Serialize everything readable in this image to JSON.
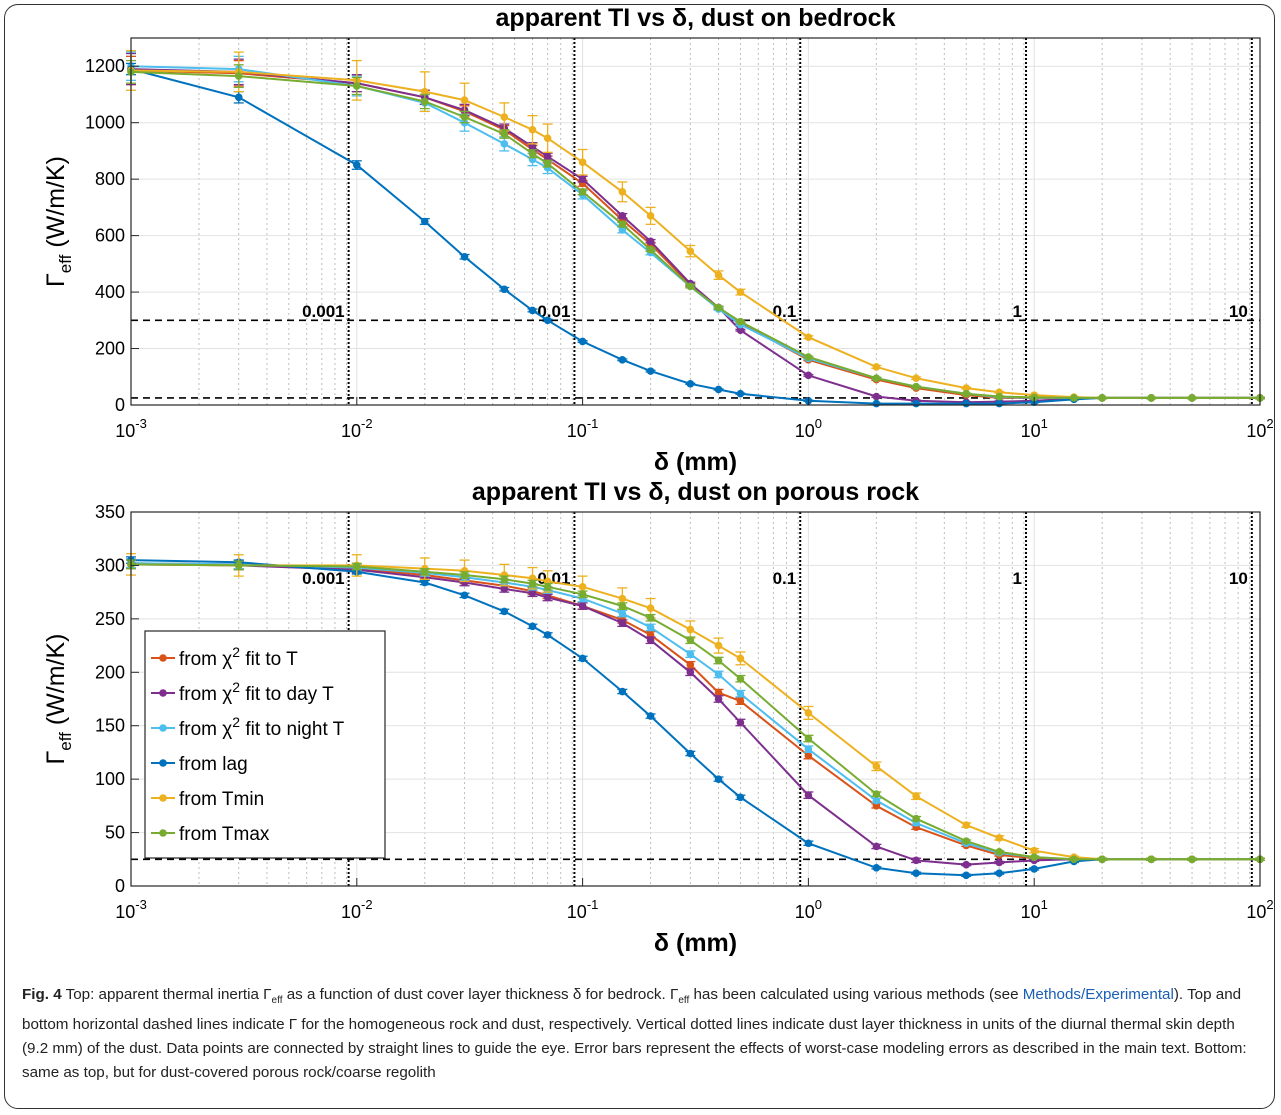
{
  "chart_data": [
    {
      "type": "line",
      "title": "apparent TI vs δ, dust on bedrock",
      "xlabel": "δ (mm)",
      "ylabel": "Γ_eff (W/m/K)",
      "xscale": "log",
      "xlim": [
        0.001,
        100
      ],
      "ylim": [
        0,
        1300
      ],
      "xticks": [
        0.001,
        0.01,
        0.1,
        1,
        10,
        100
      ],
      "yticks": [
        0,
        200,
        400,
        600,
        800,
        1000,
        1200
      ],
      "grid": "minor x dotted, major y",
      "legend": "none",
      "hlines": [
        300,
        25
      ],
      "skin_depth_lines": [
        {
          "x": 0.0092,
          "label": "0.001"
        },
        {
          "x": 0.092,
          "label": "0.01"
        },
        {
          "x": 0.92,
          "label": "0.1"
        },
        {
          "x": 9.2,
          "label": "1"
        },
        {
          "x": 92,
          "label": "10"
        }
      ],
      "x": [
        0.001,
        0.003,
        0.01,
        0.02,
        0.03,
        0.045,
        0.06,
        0.07,
        0.1,
        0.15,
        0.2,
        0.3,
        0.4,
        0.5,
        1,
        2,
        3,
        5,
        7,
        10,
        15,
        20,
        33,
        50,
        100
      ],
      "series": [
        {
          "name": "from χ² fit to T",
          "color": "#D95319",
          "values": [
            1185,
            1175,
            1140,
            1090,
            1040,
            975,
            905,
            870,
            785,
            655,
            570,
            425,
            345,
            290,
            160,
            90,
            60,
            35,
            25,
            25,
            25,
            25,
            25,
            25,
            25
          ],
          "err": [
            50,
            45,
            30,
            25,
            20,
            15,
            14,
            12,
            10,
            8,
            6,
            5,
            4,
            3,
            3,
            3,
            2,
            2,
            2,
            2,
            2,
            2,
            2,
            2,
            2
          ]
        },
        {
          "name": "from χ² fit to day T",
          "color": "#7E2F8E",
          "values": [
            1190,
            1180,
            1140,
            1090,
            1045,
            980,
            915,
            880,
            800,
            670,
            580,
            430,
            345,
            265,
            105,
            30,
            15,
            10,
            12,
            15,
            22,
            25,
            25,
            25,
            25
          ],
          "err": [
            55,
            45,
            30,
            25,
            20,
            15,
            14,
            12,
            10,
            8,
            6,
            5,
            4,
            3,
            3,
            3,
            2,
            2,
            2,
            2,
            2,
            2,
            2,
            2,
            2
          ]
        },
        {
          "name": "from χ² fit to night T",
          "color": "#4DBEEE",
          "values": [
            1200,
            1190,
            1130,
            1070,
            1000,
            925,
            870,
            840,
            745,
            620,
            540,
            420,
            340,
            285,
            165,
            95,
            65,
            40,
            28,
            26,
            25,
            25,
            25,
            25,
            25
          ],
          "err": [
            50,
            45,
            35,
            30,
            30,
            25,
            22,
            20,
            15,
            10,
            8,
            5,
            4,
            3,
            3,
            3,
            2,
            2,
            2,
            2,
            2,
            2,
            2,
            2,
            2
          ]
        },
        {
          "name": "from lag",
          "color": "#0072BD",
          "values": [
            1190,
            1090,
            850,
            650,
            525,
            410,
            335,
            300,
            225,
            160,
            120,
            75,
            55,
            40,
            15,
            5,
            5,
            5,
            5,
            10,
            20,
            25,
            25,
            25,
            25
          ],
          "err": [
            20,
            20,
            15,
            10,
            8,
            6,
            5,
            4,
            3,
            3,
            3,
            2,
            2,
            2,
            2,
            2,
            2,
            2,
            2,
            2,
            2,
            2,
            2,
            2,
            2
          ]
        },
        {
          "name": "from Tmin",
          "color": "#EDB120",
          "values": [
            1185,
            1180,
            1150,
            1110,
            1080,
            1020,
            975,
            945,
            860,
            755,
            670,
            545,
            460,
            400,
            240,
            135,
            95,
            60,
            45,
            35,
            28,
            25,
            25,
            25,
            25
          ],
          "err": [
            70,
            70,
            70,
            70,
            60,
            50,
            50,
            50,
            45,
            35,
            30,
            20,
            15,
            10,
            5,
            5,
            4,
            3,
            2,
            2,
            2,
            2,
            2,
            2,
            2
          ]
        },
        {
          "name": "from Tmax",
          "color": "#77AC30",
          "values": [
            1180,
            1165,
            1130,
            1075,
            1020,
            960,
            890,
            855,
            755,
            640,
            550,
            420,
            345,
            295,
            170,
            95,
            65,
            40,
            30,
            27,
            25,
            25,
            25,
            25,
            25
          ],
          "err": [
            40,
            40,
            30,
            25,
            20,
            15,
            14,
            12,
            10,
            8,
            6,
            5,
            4,
            3,
            3,
            3,
            2,
            2,
            2,
            2,
            2,
            2,
            2,
            2,
            2
          ]
        }
      ]
    },
    {
      "type": "line",
      "title": "apparent TI vs δ, dust on porous rock",
      "xlabel": "δ (mm)",
      "ylabel": "Γ_eff (W/m/K)",
      "xscale": "log",
      "xlim": [
        0.001,
        100
      ],
      "ylim": [
        0,
        350
      ],
      "xticks": [
        0.001,
        0.01,
        0.1,
        1,
        10,
        100
      ],
      "yticks": [
        0,
        50,
        100,
        150,
        200,
        250,
        300,
        350
      ],
      "grid": "minor x dotted, major y",
      "legend": "left",
      "hlines": [
        25
      ],
      "skin_depth_lines": [
        {
          "x": 0.0092,
          "label": "0.001"
        },
        {
          "x": 0.092,
          "label": "0.01"
        },
        {
          "x": 0.92,
          "label": "0.1"
        },
        {
          "x": 9.2,
          "label": "1"
        },
        {
          "x": 92,
          "label": "10"
        }
      ],
      "x": [
        0.001,
        0.003,
        0.01,
        0.02,
        0.03,
        0.045,
        0.06,
        0.07,
        0.1,
        0.15,
        0.2,
        0.3,
        0.4,
        0.5,
        1,
        2,
        3,
        5,
        7,
        10,
        15,
        20,
        33,
        50,
        100
      ],
      "series": [
        {
          "name": "from χ² fit to T",
          "color": "#D95319",
          "values": [
            302,
            301,
            297,
            291,
            286,
            281,
            276,
            272,
            262,
            249,
            235,
            207,
            181,
            173,
            122,
            75,
            55,
            38,
            29,
            26,
            25,
            25,
            25,
            25,
            25
          ],
          "err": [
            4,
            4,
            3,
            3,
            3,
            3,
            3,
            3,
            3,
            3,
            3,
            3,
            3,
            3,
            3,
            2,
            2,
            1,
            1,
            1,
            1,
            1,
            1,
            1,
            1
          ]
        },
        {
          "name": "from χ² fit to day T",
          "color": "#7E2F8E",
          "values": [
            301,
            300,
            296,
            289,
            284,
            278,
            274,
            270,
            262,
            246,
            230,
            200,
            175,
            153,
            85,
            37,
            24,
            20,
            22,
            24,
            25,
            25,
            25,
            25,
            25
          ],
          "err": [
            4,
            4,
            3,
            3,
            3,
            3,
            3,
            3,
            3,
            3,
            3,
            3,
            3,
            3,
            3,
            2,
            2,
            1,
            1,
            1,
            1,
            1,
            1,
            1,
            1
          ]
        },
        {
          "name": "from χ² fit to night T",
          "color": "#4DBEEE",
          "values": [
            302,
            301,
            298,
            293,
            289,
            284,
            280,
            277,
            269,
            255,
            242,
            217,
            198,
            180,
            128,
            80,
            59,
            40,
            31,
            27,
            25,
            25,
            25,
            25,
            25
          ],
          "err": [
            4,
            4,
            3,
            3,
            3,
            3,
            3,
            3,
            3,
            3,
            3,
            3,
            3,
            3,
            3,
            2,
            2,
            1,
            1,
            1,
            1,
            1,
            1,
            1,
            1
          ]
        },
        {
          "name": "from lag",
          "color": "#0072BD",
          "values": [
            305,
            303,
            294,
            284,
            272,
            257,
            243,
            235,
            213,
            182,
            159,
            124,
            100,
            83,
            40,
            17,
            12,
            10,
            12,
            16,
            23,
            25,
            25,
            25,
            25
          ],
          "err": [
            3,
            2,
            2,
            2,
            2,
            2,
            2,
            2,
            2,
            2,
            2,
            2,
            2,
            2,
            2,
            1,
            1,
            1,
            1,
            1,
            1,
            1,
            1,
            1,
            1
          ]
        },
        {
          "name": "from Tmin",
          "color": "#EDB120",
          "values": [
            301,
            300,
            300,
            297,
            295,
            291,
            288,
            285,
            280,
            269,
            260,
            240,
            225,
            213,
            162,
            112,
            84,
            57,
            45,
            33,
            27,
            25,
            25,
            25,
            25
          ],
          "err": [
            10,
            10,
            10,
            10,
            10,
            10,
            10,
            10,
            10,
            10,
            9,
            8,
            7,
            6,
            6,
            4,
            3,
            2,
            2,
            2,
            1,
            1,
            1,
            1,
            1
          ]
        },
        {
          "name": "from Tmax",
          "color": "#77AC30",
          "values": [
            301,
            300,
            299,
            294,
            291,
            287,
            283,
            280,
            273,
            262,
            251,
            230,
            211,
            194,
            138,
            86,
            63,
            42,
            32,
            27,
            25,
            25,
            25,
            25,
            25
          ],
          "err": [
            4,
            4,
            3,
            3,
            3,
            3,
            3,
            3,
            3,
            3,
            3,
            3,
            3,
            3,
            3,
            2,
            2,
            1,
            1,
            1,
            1,
            1,
            1,
            1,
            1
          ]
        }
      ]
    }
  ],
  "caption": {
    "label": "Fig. 4",
    "part1": " Top: apparent thermal inertia Γ",
    "sub1": "eff",
    "part2": " as a function of dust cover layer thickness δ for bedrock. Γ",
    "sub2": "eff",
    "part3": " has been calculated using various methods (see ",
    "link": "Methods/Experimental",
    "part4": "). Top and bottom horizontal dashed lines indicate Γ for the homogeneous rock and dust, respectively. Vertical dotted lines indicate dust layer thickness in units of the diurnal thermal skin depth (9.2 mm) of the dust. Data points are connected by straight lines to guide the eye. Error bars represent the effects of worst-case modeling errors as described in the main text. Bottom: same as top, but for dust-covered porous rock/coarse regolith"
  }
}
